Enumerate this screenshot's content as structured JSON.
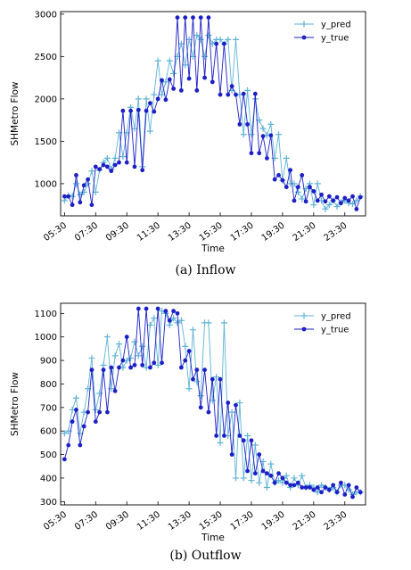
{
  "figure": {
    "captions": [
      "(a)  Inflow",
      "(b)  Outflow"
    ]
  },
  "chart_data": [
    {
      "type": "line",
      "xlabel": "Time",
      "ylabel": "SHMetro Flow",
      "ylim": [
        620,
        3030
      ],
      "yticks": [
        1000,
        1500,
        2000,
        2500,
        3000
      ],
      "xlim": [
        5.25,
        24.83
      ],
      "xticks": [
        5.5,
        7.5,
        9.5,
        11.5,
        13.5,
        15.5,
        17.5,
        19.5,
        21.5,
        23.5
      ],
      "xtick_labels": [
        "05:30",
        "07:30",
        "09:30",
        "11:30",
        "13:30",
        "15:30",
        "17:30",
        "19:30",
        "21:30",
        "23:30"
      ],
      "legend": "top-right",
      "grid": false,
      "colors": {
        "y_pred": "#5fb3d6",
        "y_true": "#1d1fc6"
      },
      "series": [
        {
          "name": "y_pred",
          "marker": "plus",
          "x": [
            5.5,
            5.75,
            6.0,
            6.25,
            6.5,
            6.75,
            7.0,
            7.25,
            7.5,
            7.75,
            8.0,
            8.25,
            8.5,
            8.75,
            9.0,
            9.25,
            9.5,
            9.75,
            10.0,
            10.25,
            10.5,
            10.75,
            11.0,
            11.25,
            11.5,
            11.75,
            12.0,
            12.25,
            12.5,
            12.75,
            13.0,
            13.25,
            13.5,
            13.75,
            14.0,
            14.25,
            14.5,
            14.75,
            15.0,
            15.25,
            15.5,
            15.75,
            16.0,
            16.25,
            16.5,
            16.75,
            17.0,
            17.25,
            17.5,
            17.75,
            18.0,
            18.25,
            18.5,
            18.75,
            19.0,
            19.25,
            19.5,
            19.75,
            20.0,
            20.25,
            20.5,
            20.75,
            21.0,
            21.25,
            21.5,
            21.75,
            22.0,
            22.25,
            22.5,
            22.75,
            23.0,
            23.25,
            23.5,
            23.75,
            24.0,
            24.25,
            24.5
          ],
          "values": [
            800,
            860,
            850,
            1000,
            870,
            900,
            1000,
            1150,
            900,
            1160,
            1250,
            1300,
            1170,
            1300,
            1600,
            1320,
            1600,
            1900,
            1650,
            2000,
            1200,
            2000,
            1620,
            2050,
            2450,
            2050,
            2200,
            2450,
            2300,
            2500,
            2650,
            2400,
            2700,
            2500,
            2750,
            2700,
            2500,
            2750,
            2650,
            2700,
            2700,
            2650,
            2700,
            2100,
            2700,
            2050,
            1580,
            2100,
            1580,
            2000,
            1750,
            1650,
            1570,
            1700,
            1300,
            1580,
            1040,
            1300,
            1000,
            1000,
            900,
            820,
            940,
            1000,
            750,
            1000,
            800,
            700,
            750,
            800,
            730,
            780,
            800,
            770,
            760,
            800,
            850
          ]
        },
        {
          "name": "y_true",
          "marker": "dot",
          "x": [
            5.5,
            5.75,
            6.0,
            6.25,
            6.5,
            6.75,
            7.0,
            7.25,
            7.5,
            7.75,
            8.0,
            8.25,
            8.5,
            8.75,
            9.0,
            9.25,
            9.5,
            9.75,
            10.0,
            10.25,
            10.5,
            10.75,
            11.0,
            11.25,
            11.5,
            11.75,
            12.0,
            12.25,
            12.5,
            12.75,
            13.0,
            13.25,
            13.5,
            13.75,
            14.0,
            14.25,
            14.5,
            14.75,
            15.0,
            15.25,
            15.5,
            15.75,
            16.0,
            16.25,
            16.5,
            16.75,
            17.0,
            17.25,
            17.5,
            17.75,
            18.0,
            18.25,
            18.5,
            18.75,
            19.0,
            19.25,
            19.5,
            19.75,
            20.0,
            20.25,
            20.5,
            20.75,
            21.0,
            21.25,
            21.5,
            21.75,
            22.0,
            22.25,
            22.5,
            22.75,
            23.0,
            23.25,
            23.5,
            23.75,
            24.0,
            24.25,
            24.5
          ],
          "values": [
            850,
            850,
            750,
            1100,
            780,
            980,
            1050,
            750,
            1200,
            1170,
            1220,
            1200,
            1150,
            1220,
            1250,
            1860,
            1250,
            1860,
            1200,
            1870,
            1160,
            1860,
            1950,
            1850,
            2000,
            2220,
            1990,
            2230,
            2120,
            2960,
            2100,
            2960,
            2240,
            2960,
            2100,
            2960,
            2250,
            2960,
            2200,
            2650,
            2050,
            2650,
            2050,
            2150,
            2050,
            1700,
            2060,
            1700,
            1360,
            2060,
            1360,
            1560,
            1300,
            1570,
            1050,
            1100,
            1040,
            960,
            1160,
            800,
            960,
            1100,
            790,
            960,
            910,
            800,
            870,
            790,
            850,
            800,
            840,
            770,
            830,
            800,
            850,
            700,
            840
          ]
        }
      ]
    },
    {
      "type": "line",
      "xlabel": "Time",
      "ylabel": "SHMetro Flow",
      "ylim": [
        286,
        1143
      ],
      "yticks": [
        300,
        400,
        500,
        600,
        700,
        800,
        900,
        1000,
        1100
      ],
      "xlim": [
        5.25,
        24.83
      ],
      "xticks": [
        5.5,
        7.5,
        9.5,
        11.5,
        13.5,
        15.5,
        17.5,
        19.5,
        21.5,
        23.5
      ],
      "xtick_labels": [
        "05:30",
        "07:30",
        "09:30",
        "11:30",
        "13:30",
        "15:30",
        "17:30",
        "19:30",
        "21:30",
        "23:30"
      ],
      "legend": "top-right",
      "grid": false,
      "colors": {
        "y_pred": "#5fb3d6",
        "y_true": "#1d1fc6"
      },
      "series": [
        {
          "name": "y_pred",
          "marker": "plus",
          "x": [
            5.5,
            5.75,
            6.0,
            6.25,
            6.5,
            6.75,
            7.0,
            7.25,
            7.5,
            7.75,
            8.0,
            8.25,
            8.5,
            8.75,
            9.0,
            9.25,
            9.5,
            9.75,
            10.0,
            10.25,
            10.5,
            10.75,
            11.0,
            11.25,
            11.5,
            11.75,
            12.0,
            12.25,
            12.5,
            12.75,
            13.0,
            13.25,
            13.5,
            13.75,
            14.0,
            14.25,
            14.5,
            14.75,
            15.0,
            15.25,
            15.5,
            15.75,
            16.0,
            16.25,
            16.5,
            16.75,
            17.0,
            17.25,
            17.5,
            17.75,
            18.0,
            18.25,
            18.5,
            18.75,
            19.0,
            19.25,
            19.5,
            19.75,
            20.0,
            20.25,
            20.5,
            20.75,
            21.0,
            21.25,
            21.5,
            21.75,
            22.0,
            22.25,
            22.5,
            22.75,
            23.0,
            23.25,
            23.5,
            23.75,
            24.0,
            24.25,
            24.5
          ],
          "values": [
            590,
            600,
            690,
            740,
            590,
            680,
            780,
            910,
            690,
            760,
            880,
            1000,
            780,
            920,
            970,
            870,
            900,
            910,
            980,
            920,
            960,
            870,
            1050,
            1080,
            880,
            1110,
            1100,
            1050,
            1080,
            1060,
            1070,
            960,
            780,
            1030,
            810,
            750,
            1060,
            1060,
            730,
            830,
            550,
            1060,
            580,
            680,
            400,
            720,
            400,
            580,
            390,
            540,
            380,
            470,
            360,
            460,
            380,
            390,
            380,
            410,
            360,
            400,
            370,
            410,
            360,
            370,
            360,
            340,
            370,
            360,
            350,
            360,
            340,
            370,
            370,
            350,
            330,
            340,
            340
          ]
        },
        {
          "name": "y_true",
          "marker": "dot",
          "x": [
            5.5,
            5.75,
            6.0,
            6.25,
            6.5,
            6.75,
            7.0,
            7.25,
            7.5,
            7.75,
            8.0,
            8.25,
            8.5,
            8.75,
            9.0,
            9.25,
            9.5,
            9.75,
            10.0,
            10.25,
            10.5,
            10.75,
            11.0,
            11.25,
            11.5,
            11.75,
            12.0,
            12.25,
            12.5,
            12.75,
            13.0,
            13.25,
            13.5,
            13.75,
            14.0,
            14.25,
            14.5,
            14.75,
            15.0,
            15.25,
            15.5,
            15.75,
            16.0,
            16.25,
            16.5,
            16.75,
            17.0,
            17.25,
            17.5,
            17.75,
            18.0,
            18.25,
            18.5,
            18.75,
            19.0,
            19.25,
            19.5,
            19.75,
            20.0,
            20.25,
            20.5,
            20.75,
            21.0,
            21.25,
            21.5,
            21.75,
            22.0,
            22.25,
            22.5,
            22.75,
            23.0,
            23.25,
            23.5,
            23.75,
            24.0,
            24.25,
            24.5
          ],
          "values": [
            480,
            540,
            640,
            690,
            540,
            620,
            680,
            860,
            640,
            680,
            860,
            680,
            870,
            770,
            870,
            900,
            1000,
            870,
            880,
            1120,
            880,
            1120,
            870,
            890,
            1120,
            890,
            1110,
            1070,
            1110,
            1100,
            870,
            900,
            940,
            820,
            860,
            700,
            860,
            680,
            820,
            580,
            820,
            580,
            720,
            500,
            710,
            580,
            560,
            430,
            560,
            420,
            500,
            430,
            420,
            410,
            380,
            420,
            400,
            380,
            370,
            370,
            380,
            360,
            360,
            360,
            350,
            360,
            340,
            360,
            350,
            370,
            340,
            380,
            330,
            370,
            320,
            360,
            340
          ]
        }
      ]
    }
  ]
}
